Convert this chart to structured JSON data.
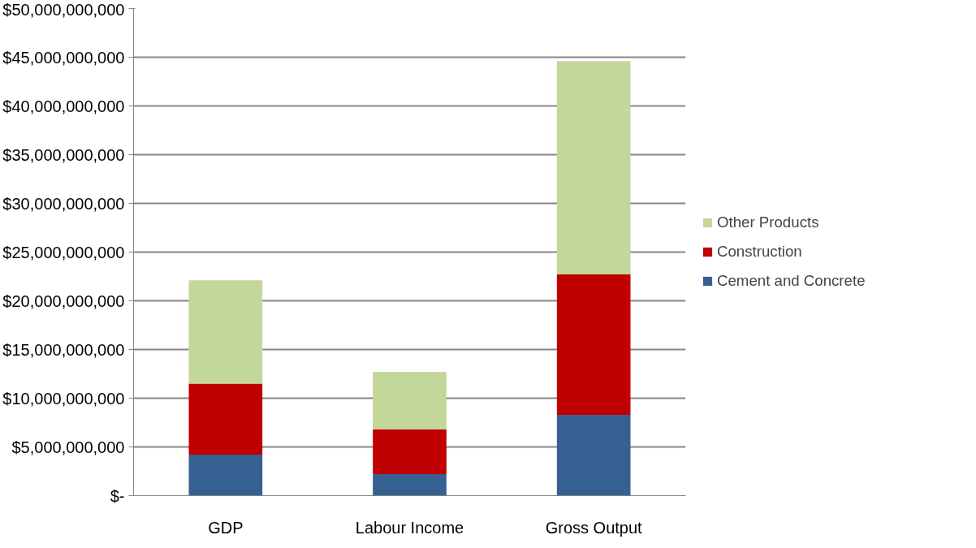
{
  "chart_data": {
    "type": "bar",
    "stacked": true,
    "categories": [
      "GDP",
      "Labour Income",
      "Gross Output"
    ],
    "series": [
      {
        "name": "Cement and Concrete",
        "color": "#366092",
        "values": [
          4200000000,
          2200000000,
          8300000000
        ]
      },
      {
        "name": "Construction",
        "color": "#c00000",
        "values": [
          7300000000,
          4600000000,
          14400000000
        ]
      },
      {
        "name": "Other Products",
        "color": "#c4d79b",
        "values": [
          10600000000,
          5900000000,
          21900000000
        ]
      }
    ],
    "ylim": [
      0,
      50000000000
    ],
    "yticks": [
      {
        "value": 0,
        "label": "$-"
      },
      {
        "value": 5000000000,
        "label": "$5,000,000,000"
      },
      {
        "value": 10000000000,
        "label": "$10,000,000,000"
      },
      {
        "value": 15000000000,
        "label": "$15,000,000,000"
      },
      {
        "value": 20000000000,
        "label": "$20,000,000,000"
      },
      {
        "value": 25000000000,
        "label": "$25,000,000,000"
      },
      {
        "value": 30000000000,
        "label": "$30,000,000,000"
      },
      {
        "value": 35000000000,
        "label": "$35,000,000,000"
      },
      {
        "value": 40000000000,
        "label": "$40,000,000,000"
      },
      {
        "value": 45000000000,
        "label": "$45,000,000,000"
      },
      {
        "value": 50000000000,
        "label": "$50,000,000,000"
      }
    ],
    "grid": "y",
    "legend": "right"
  }
}
